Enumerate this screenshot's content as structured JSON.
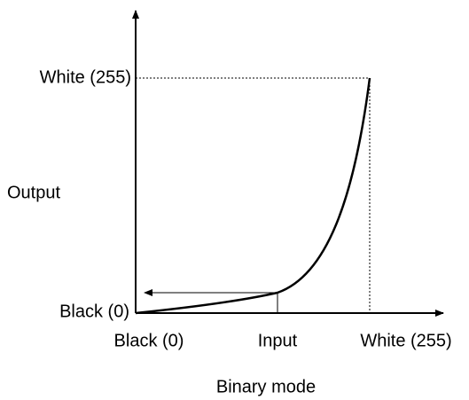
{
  "y_axis": {
    "labels": [
      "White (255)",
      "Output",
      "Black (0)"
    ]
  },
  "x_axis": {
    "labels": [
      "Black (0)",
      "Input",
      "White (255)"
    ]
  },
  "caption": "Binary mode"
}
